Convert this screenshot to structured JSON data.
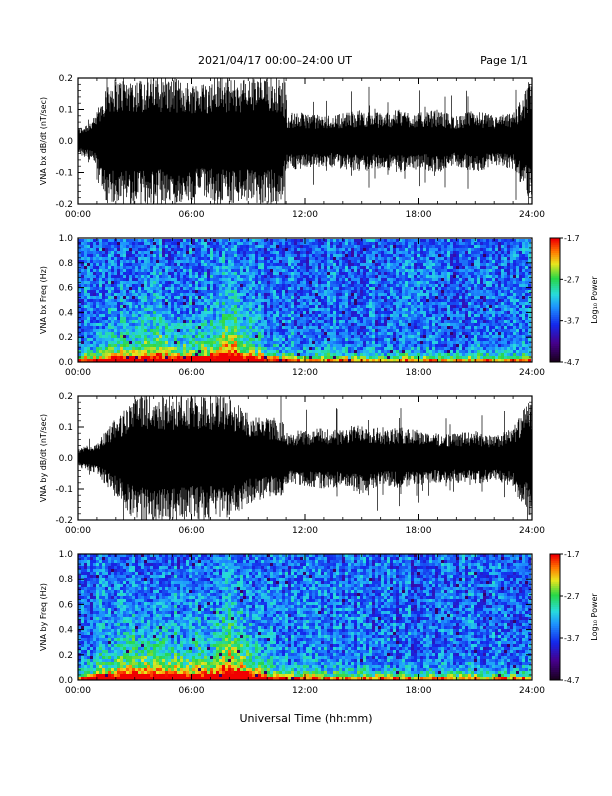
{
  "header": {
    "title": "2021/04/17  00:00–24:00 UT",
    "page_label": "Page 1/1"
  },
  "footer": {
    "xlabel": "Universal Time (hh:mm)"
  },
  "chart_data": [
    {
      "type": "line",
      "ylabel": "VNA bx dB/dt (nT/sec)",
      "xlim": [
        0,
        24
      ],
      "ylim": [
        -0.2,
        0.2
      ],
      "x_ticks": [
        "00:00",
        "06:00",
        "12:00",
        "18:00",
        "24:00"
      ],
      "y_ticks": [
        "-0.2",
        "-0.1",
        "0.0",
        "0.1",
        "0.2"
      ],
      "envelope": {
        "x_hours": [
          0,
          1,
          1.5,
          2,
          3,
          4,
          5,
          6,
          7,
          8,
          9,
          10,
          10.8,
          11,
          12,
          13,
          14,
          15,
          16,
          17,
          18,
          19,
          20,
          21,
          22,
          23,
          24
        ],
        "amplitude": [
          0.04,
          0.08,
          0.2,
          0.2,
          0.2,
          0.2,
          0.2,
          0.19,
          0.19,
          0.2,
          0.2,
          0.2,
          0.2,
          0.09,
          0.09,
          0.08,
          0.09,
          0.1,
          0.09,
          0.1,
          0.09,
          0.1,
          0.08,
          0.1,
          0.08,
          0.09,
          0.2
        ]
      }
    },
    {
      "type": "heatmap",
      "ylabel": "VNA bx Freq (Hz)",
      "xlim": [
        0,
        24
      ],
      "ylim": [
        0,
        1
      ],
      "x_ticks": [
        "00:00",
        "06:00",
        "12:00",
        "18:00",
        "24:00"
      ],
      "y_ticks": [
        "0.0",
        "0.2",
        "0.4",
        "0.6",
        "0.8",
        "1.0"
      ],
      "colorbar": {
        "label": "Log₁₀ Power",
        "min": -4.7,
        "max": -1.7,
        "ticks": [
          "-1.7",
          "-2.7",
          "-3.7",
          "-4.7"
        ]
      },
      "activity": {
        "x_hours": [
          0,
          2,
          3,
          4,
          5,
          6,
          7,
          8,
          9,
          10,
          11,
          12,
          14,
          16,
          18,
          20,
          22,
          24
        ],
        "level": [
          0.1,
          0.5,
          0.6,
          0.7,
          0.6,
          0.5,
          0.6,
          0.95,
          0.6,
          0.3,
          0.18,
          0.12,
          0.12,
          0.08,
          0.06,
          0.05,
          0.05,
          0.1
        ]
      }
    },
    {
      "type": "line",
      "ylabel": "VNA by dB/dt (nT/sec)",
      "xlim": [
        0,
        24
      ],
      "ylim": [
        -0.2,
        0.2
      ],
      "x_ticks": [
        "00:00",
        "06:00",
        "12:00",
        "18:00",
        "24:00"
      ],
      "y_ticks": [
        "-0.2",
        "-0.1",
        "0.0",
        "0.1",
        "0.2"
      ],
      "envelope": {
        "x_hours": [
          0,
          1,
          1.5,
          2,
          3,
          4,
          5,
          6,
          7,
          8,
          9,
          10,
          10.8,
          11,
          12,
          13,
          14,
          15,
          16,
          17,
          18,
          19,
          20,
          21,
          22,
          23,
          24
        ],
        "amplitude": [
          0.03,
          0.05,
          0.09,
          0.13,
          0.2,
          0.2,
          0.2,
          0.2,
          0.2,
          0.2,
          0.15,
          0.13,
          0.12,
          0.09,
          0.09,
          0.1,
          0.09,
          0.12,
          0.09,
          0.1,
          0.09,
          0.08,
          0.08,
          0.09,
          0.07,
          0.1,
          0.2
        ]
      }
    },
    {
      "type": "heatmap",
      "ylabel": "VNA by Freq (Hz)",
      "xlim": [
        0,
        24
      ],
      "ylim": [
        0,
        1
      ],
      "x_ticks": [
        "00:00",
        "06:00",
        "12:00",
        "18:00",
        "24:00"
      ],
      "y_ticks": [
        "0.0",
        "0.2",
        "0.4",
        "0.6",
        "0.8",
        "1.0"
      ],
      "colorbar": {
        "label": "Log₁₀ Power",
        "min": -4.7,
        "max": -1.7,
        "ticks": [
          "-1.7",
          "-2.7",
          "-3.7",
          "-4.7"
        ]
      },
      "activity": {
        "x_hours": [
          0,
          2,
          3,
          4,
          5,
          6,
          7,
          8,
          9,
          10,
          11,
          12,
          14,
          16,
          18,
          20,
          22,
          24
        ],
        "level": [
          0.15,
          0.6,
          0.7,
          0.75,
          0.7,
          0.6,
          0.65,
          0.95,
          0.7,
          0.3,
          0.2,
          0.12,
          0.12,
          0.08,
          0.08,
          0.07,
          0.06,
          0.12
        ]
      }
    }
  ]
}
